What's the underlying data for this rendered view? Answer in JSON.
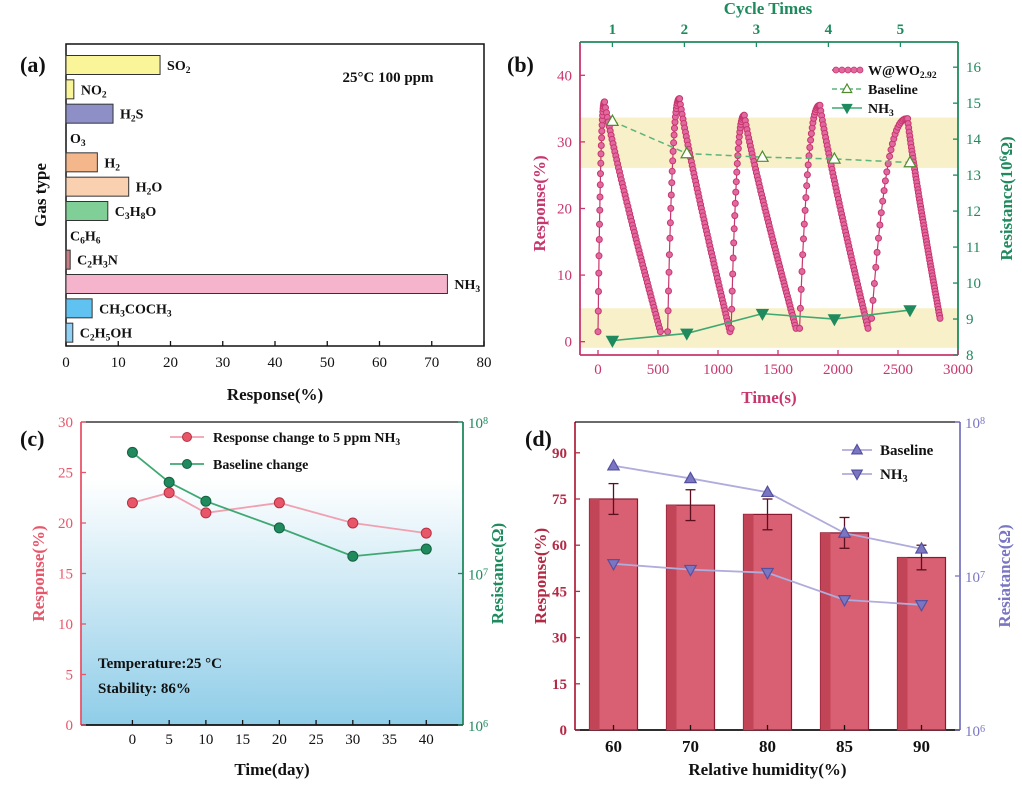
{
  "panel_labels": [
    "(a)",
    "(b)",
    "(c)",
    "(d)"
  ],
  "colors": {
    "pink_series": "#c8366e",
    "green_series": "#1f8a5e",
    "red_series": "#e8566a",
    "maroon_bar": "#b32a44",
    "lavender_series": "#7a76c2",
    "band": "#f7f0c8"
  },
  "chart_data": [
    {
      "type": "bar",
      "orientation": "horizontal",
      "annotation": "25°C 100 ppm",
      "xlabel": "Response(%)",
      "ylabel": "Gas type",
      "xlim": [
        0,
        80
      ],
      "xticks": [
        0,
        10,
        20,
        30,
        40,
        50,
        60,
        70,
        80
      ],
      "categories": [
        "SO2",
        "NO2",
        "H2S",
        "O3",
        "H2",
        "H2O",
        "C3H8O",
        "C6H6",
        "C2H3N",
        "NH3",
        "CH3COCH3",
        "C2H5OH"
      ],
      "category_labels": [
        [
          [
            "SO",
            ""
          ],
          [
            "2",
            "sub"
          ]
        ],
        [
          [
            "NO",
            ""
          ],
          [
            "2",
            "sub"
          ]
        ],
        [
          [
            "H",
            ""
          ],
          [
            "2",
            "sub"
          ],
          [
            "S",
            ""
          ]
        ],
        [
          [
            "O",
            ""
          ],
          [
            "3",
            "sub"
          ]
        ],
        [
          [
            "H",
            ""
          ],
          [
            "2",
            "sub"
          ]
        ],
        [
          [
            "H",
            ""
          ],
          [
            "2",
            "sub"
          ],
          [
            "O",
            ""
          ]
        ],
        [
          [
            "C",
            ""
          ],
          [
            "3",
            "sub"
          ],
          [
            "H",
            ""
          ],
          [
            "8",
            "sub"
          ],
          [
            "O",
            ""
          ]
        ],
        [
          [
            "C",
            ""
          ],
          [
            "6",
            "sub"
          ],
          [
            "H",
            ""
          ],
          [
            "6",
            "sub"
          ]
        ],
        [
          [
            "C",
            ""
          ],
          [
            "2",
            "sub"
          ],
          [
            "H",
            ""
          ],
          [
            "3",
            "sub"
          ],
          [
            "N",
            ""
          ]
        ],
        [
          [
            "NH",
            ""
          ],
          [
            "3",
            "sub"
          ]
        ],
        [
          [
            "CH",
            ""
          ],
          [
            "3",
            "sub"
          ],
          [
            "COCH",
            ""
          ],
          [
            "3",
            "sub"
          ]
        ],
        [
          [
            "C",
            ""
          ],
          [
            "2",
            "sub"
          ],
          [
            "H",
            ""
          ],
          [
            "5",
            "sub"
          ],
          [
            "OH",
            ""
          ]
        ]
      ],
      "values": [
        18,
        1.5,
        9,
        0,
        6,
        12,
        8,
        0,
        0.8,
        73,
        5,
        1.3
      ],
      "bar_colors": [
        "#fbf59a",
        "#fbf59a",
        "#8d8fc6",
        "#ffffff",
        "#f4b78b",
        "#f9d0b0",
        "#7fcf97",
        "#ffffff",
        "#c97f86",
        "#f5b4cc",
        "#5fc2f0",
        "#8fd0f4"
      ]
    },
    {
      "type": "line",
      "xlabel": "Time(s)",
      "ylabel": "Response(%)",
      "y2label": [
        [
          "Resistance(10",
          ""
        ],
        [
          "6",
          "sup"
        ],
        [
          "Ω)",
          ""
        ]
      ],
      "top_axis_label": "Cycle Times",
      "top_ticks": [
        "1",
        "2",
        "3",
        "4",
        "5"
      ],
      "top_tick_x": [
        120,
        720,
        1320,
        1920,
        2520
      ],
      "xlim": [
        -150,
        3000
      ],
      "ylim": [
        -2,
        45
      ],
      "y2lim": [
        8,
        16.7
      ],
      "xticks": [
        0,
        500,
        1000,
        1500,
        2000,
        2500,
        3000
      ],
      "yticks": [
        0,
        10,
        20,
        30,
        40
      ],
      "y2ticks": [
        8,
        9,
        10,
        11,
        12,
        13,
        14,
        15,
        16
      ],
      "bands_y2": [
        [
          13.2,
          14.6
        ],
        [
          8.2,
          9.3
        ]
      ],
      "response_cycles": [
        {
          "start": 0,
          "peak_t": 55,
          "peak": 36,
          "end": 520,
          "base": 1.5
        },
        {
          "start": 580,
          "peak_t": 680,
          "peak": 36.5,
          "end": 1100,
          "base": 1.5
        },
        {
          "start": 1110,
          "peak_t": 1220,
          "peak": 34,
          "end": 1650,
          "base": 2
        },
        {
          "start": 1680,
          "peak_t": 1850,
          "peak": 35.5,
          "end": 2250,
          "base": 2
        },
        {
          "start": 2280,
          "peak_t": 2580,
          "peak": 33.5,
          "end": 2850,
          "base": 3.5
        }
      ],
      "series": [
        {
          "name": [
            [
              "W@WO",
              ""
            ],
            [
              "2.92",
              "sub"
            ]
          ],
          "axis": "left",
          "marker": "circle"
        },
        {
          "name": [
            [
              "Baseline",
              ""
            ]
          ],
          "axis": "right",
          "marker": "triangle-up-open",
          "dashed": true,
          "x": [
            120,
            740,
            1370,
            1970,
            2600
          ],
          "y": [
            14.5,
            13.6,
            13.5,
            13.45,
            13.35
          ]
        },
        {
          "name": [
            [
              "NH",
              ""
            ],
            [
              "3",
              "sub"
            ]
          ],
          "axis": "right",
          "marker": "triangle-down",
          "x": [
            120,
            740,
            1370,
            1970,
            2600
          ],
          "y": [
            8.4,
            8.6,
            9.15,
            9.0,
            9.25
          ]
        }
      ]
    },
    {
      "type": "line",
      "xlabel": "Time(day)",
      "ylabel": "Response(%)",
      "y2label": "Resistance(Ω)",
      "xlim": [
        -7,
        45
      ],
      "ylim": [
        0,
        30
      ],
      "xticks": [
        0,
        5,
        10,
        15,
        20,
        25,
        30,
        35,
        40
      ],
      "yticks": [
        0,
        5,
        10,
        15,
        20,
        25,
        30
      ],
      "y2_log": true,
      "y2lim": [
        1000000,
        100000000
      ],
      "y2ticks": [
        [
          [
            "10",
            ""
          ],
          [
            "6",
            "sup"
          ]
        ],
        [
          [
            "10",
            ""
          ],
          [
            "7",
            "sup"
          ]
        ],
        [
          [
            "10",
            ""
          ],
          [
            "8",
            "sup"
          ]
        ]
      ],
      "annotation": [
        "Temperature:25 °C",
        "Stability:  86%"
      ],
      "series": [
        {
          "name": [
            [
              "Response change to 5 ppm NH",
              ""
            ],
            [
              "3",
              "sub"
            ]
          ],
          "axis": "left",
          "x": [
            0,
            5,
            10,
            20,
            30,
            40
          ],
          "y": [
            22,
            23,
            21,
            22,
            20,
            19
          ]
        },
        {
          "name": [
            [
              "Baseline change",
              ""
            ]
          ],
          "axis": "right",
          "x": [
            0,
            5,
            10,
            20,
            30,
            40
          ],
          "y": [
            63000000,
            40000000,
            30000000,
            20000000,
            13000000,
            14500000
          ]
        }
      ]
    },
    {
      "type": "bar",
      "xlabel": "Relative humidity(%)",
      "ylabel": "Response(%)",
      "y2label": "Resiatance(Ω)",
      "categories": [
        "60",
        "70",
        "80",
        "85",
        "90"
      ],
      "values": [
        75,
        73,
        70,
        64,
        56
      ],
      "errors": [
        5,
        5,
        5,
        5,
        4
      ],
      "ylim": [
        0,
        100
      ],
      "yticks": [
        0,
        15,
        30,
        45,
        60,
        75,
        90
      ],
      "y2_log": true,
      "y2lim": [
        1000000,
        100000000
      ],
      "y2ticks": [
        [
          [
            "10",
            ""
          ],
          [
            "6",
            "sup"
          ]
        ],
        [
          [
            "10",
            ""
          ],
          [
            "7",
            "sup"
          ]
        ],
        [
          [
            "10",
            ""
          ],
          [
            "8",
            "sup"
          ]
        ]
      ],
      "series": [
        {
          "name": [
            [
              "Baseline",
              ""
            ]
          ],
          "axis": "right",
          "marker": "triangle-up",
          "y": [
            52000000,
            43000000,
            35000000,
            19000000,
            15000000
          ]
        },
        {
          "name": [
            [
              "NH",
              ""
            ],
            [
              "3",
              "sub"
            ]
          ],
          "axis": "right",
          "marker": "triangle-down",
          "y": [
            12000000,
            11000000,
            10500000,
            7000000,
            6500000
          ]
        }
      ]
    }
  ]
}
